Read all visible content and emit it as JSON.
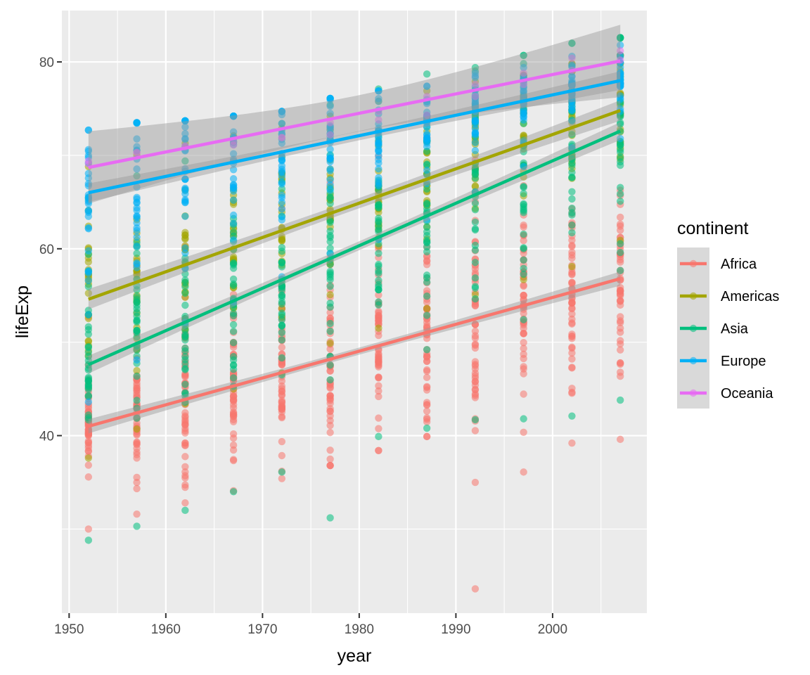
{
  "chart_data": {
    "type": "scatter",
    "title": "",
    "xlabel": "year",
    "ylabel": "lifeExp",
    "xlim": [
      1949.25,
      2009.75
    ],
    "ylim": [
      21.0,
      85.5
    ],
    "xticks": [
      1950,
      1960,
      1970,
      1980,
      1990,
      2000
    ],
    "xticks_minor": [
      1955,
      1965,
      1975,
      1985,
      1995,
      2005
    ],
    "yticks": [
      40,
      60,
      80
    ],
    "yticks_minor": [
      30,
      50,
      70
    ],
    "x_tick_labels": [
      "1950",
      "1960",
      "1970",
      "1980",
      "1990",
      "2000"
    ],
    "y_tick_labels": [
      "40",
      "60",
      "80"
    ],
    "years": [
      1952,
      1957,
      1962,
      1967,
      1972,
      1977,
      1982,
      1987,
      1992,
      1997,
      2002,
      2007
    ],
    "grid": true,
    "legend": {
      "title": "continent",
      "position": "right"
    },
    "series": [
      {
        "name": "Africa",
        "color": "#F8766D",
        "count": 52,
        "fit": {
          "start": 41.0,
          "end": 56.8
        },
        "min": [
          30.0,
          31.6,
          32.8,
          34.1,
          35.4,
          36.8,
          38.4,
          39.9,
          23.6,
          36.1,
          39.2,
          39.6
        ],
        "max": [
          52.7,
          58.1,
          60.2,
          61.6,
          64.3,
          67.1,
          69.9,
          71.9,
          73.6,
          74.8,
          75.7,
          76.4
        ]
      },
      {
        "name": "Americas",
        "color": "#A3A500",
        "count": 25,
        "fit": {
          "start": 54.6,
          "end": 74.8
        },
        "min": [
          37.6,
          40.7,
          43.4,
          45.0,
          46.7,
          49.9,
          51.5,
          53.6,
          55.1,
          56.7,
          58.1,
          60.9
        ],
        "max": [
          68.8,
          70.0,
          71.3,
          72.1,
          72.9,
          74.2,
          75.8,
          76.9,
          77.9,
          78.6,
          79.8,
          80.7
        ]
      },
      {
        "name": "Asia",
        "color": "#00BF7D",
        "count": 33,
        "fit": {
          "start": 47.6,
          "end": 72.6
        },
        "min": [
          28.8,
          30.3,
          32.0,
          34.0,
          36.1,
          31.2,
          39.9,
          40.8,
          41.7,
          41.8,
          42.1,
          43.8
        ],
        "max": [
          65.4,
          67.8,
          69.4,
          71.4,
          73.4,
          75.4,
          77.1,
          78.7,
          79.4,
          80.7,
          82.0,
          82.6
        ]
      },
      {
        "name": "Europe",
        "color": "#00B0F6",
        "count": 30,
        "fit": {
          "start": 66.0,
          "end": 78.0
        },
        "min": [
          43.6,
          48.1,
          52.1,
          54.3,
          57.0,
          59.5,
          61.0,
          63.1,
          66.1,
          68.8,
          70.8,
          71.8
        ],
        "max": [
          72.7,
          73.5,
          73.7,
          74.2,
          74.7,
          76.1,
          76.9,
          77.4,
          78.8,
          79.4,
          80.6,
          81.8
        ]
      },
      {
        "name": "Oceania",
        "color": "#E76BF3",
        "count": 2,
        "fit": {
          "start": 68.7,
          "end": 80.1
        },
        "min": [
          69.1,
          70.3,
          70.9,
          71.1,
          71.9,
          72.2,
          73.8,
          74.3,
          76.3,
          77.6,
          79.1,
          80.2
        ],
        "max": [
          69.4,
          70.3,
          71.0,
          71.5,
          71.9,
          73.5,
          74.7,
          76.3,
          77.6,
          78.8,
          80.4,
          81.2
        ]
      }
    ]
  }
}
